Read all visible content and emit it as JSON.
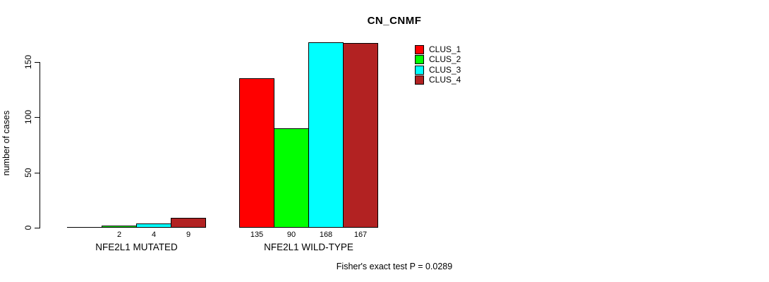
{
  "chart_data": {
    "type": "bar",
    "title": "CN_CNMF",
    "ylabel": "number of cases",
    "xlabel": "",
    "ylim": [
      0,
      168
    ],
    "yticks": [
      0,
      50,
      100,
      150
    ],
    "grid": false,
    "legend_position": "top-right",
    "categories": [
      "NFE2L1 MUTATED",
      "NFE2L1 WILD-TYPE"
    ],
    "series": [
      {
        "name": "CLUS_1",
        "color": "#FF0000",
        "values": [
          0,
          135
        ]
      },
      {
        "name": "CLUS_2",
        "color": "#00FF00",
        "values": [
          2,
          90
        ]
      },
      {
        "name": "CLUS_3",
        "color": "#00FFFF",
        "values": [
          4,
          168
        ]
      },
      {
        "name": "CLUS_4",
        "color": "#B22222",
        "values": [
          9,
          167
        ]
      }
    ],
    "bar_value_labels": [
      [
        "",
        "2",
        "4",
        "9"
      ],
      [
        "135",
        "90",
        "168",
        "167"
      ]
    ],
    "annotation": "Fisher's exact test P = 0.0289",
    "colors": {
      "axis": "#000000",
      "text": "#000000",
      "background": "#ffffff"
    }
  }
}
